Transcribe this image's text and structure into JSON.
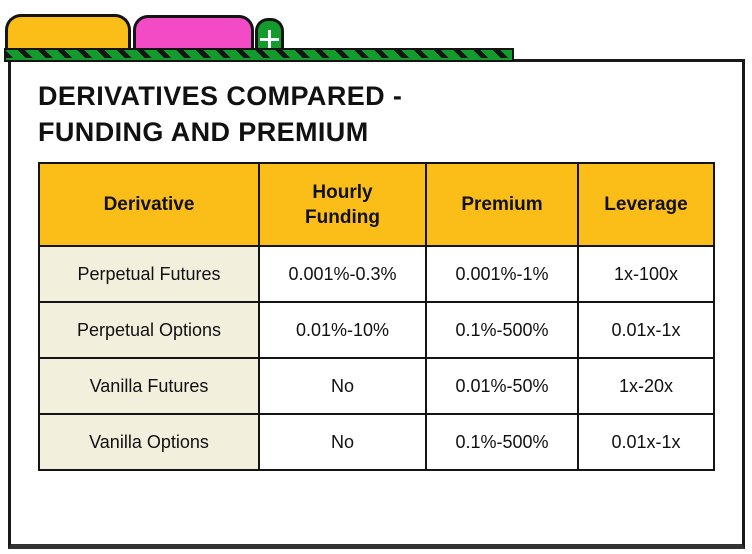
{
  "colors": {
    "tab_yellow": "#FBBE18",
    "tab_pink": "#F24BC5",
    "green": "#149B2D",
    "table_header_yellow": "#FBBE18",
    "row_label_cream": "#F3EFDD",
    "ink": "#141414"
  },
  "tabs": {
    "new_tab_glyph": "+"
  },
  "title": {
    "line1": "DERIVATIVES COMPARED -",
    "line2": "FUNDING AND PREMIUM"
  },
  "table": {
    "headers": [
      "Derivative",
      "Hourly Funding",
      "Premium",
      "Leverage"
    ],
    "rows": [
      [
        "Perpetual Futures",
        "0.001%-0.3%",
        "0.001%-1%",
        "1x-100x"
      ],
      [
        "Perpetual Options",
        "0.01%-10%",
        "0.1%-500%",
        "0.01x-1x"
      ],
      [
        "Vanilla Futures",
        "No",
        "0.01%-50%",
        "1x-20x"
      ],
      [
        "Vanilla Options",
        "No",
        "0.1%-500%",
        "0.01x-1x"
      ]
    ]
  }
}
